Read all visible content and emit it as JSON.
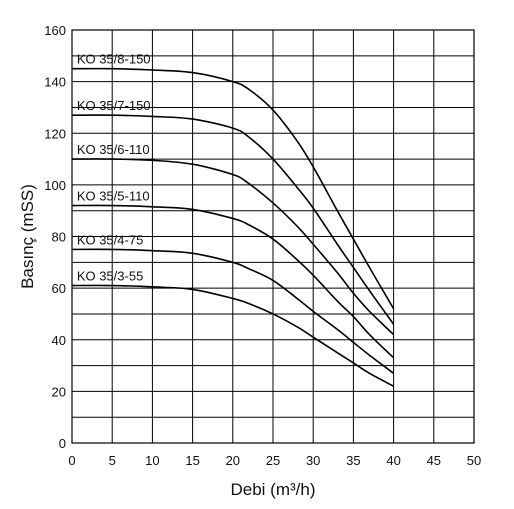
{
  "chart_data": {
    "type": "line",
    "title": "",
    "xlabel": "Debi (m³/h)",
    "ylabel": "Basınç (mSS)",
    "xlim": [
      0,
      50
    ],
    "ylim": [
      0,
      160
    ],
    "x_ticks": [
      0,
      5,
      10,
      15,
      20,
      25,
      30,
      35,
      40,
      45,
      50
    ],
    "y_ticks": [
      0,
      20,
      40,
      60,
      80,
      100,
      120,
      140,
      160
    ],
    "grid": true,
    "series": [
      {
        "name": "KO 35/8-150",
        "x": [
          0,
          5,
          10,
          15,
          20,
          22,
          25,
          28,
          30,
          33,
          35,
          37,
          40
        ],
        "y": [
          145,
          145,
          144.5,
          143.5,
          140,
          137,
          129,
          117,
          107,
          90,
          79,
          68,
          52
        ]
      },
      {
        "name": "KO 35/7-150",
        "x": [
          0,
          5,
          10,
          15,
          20,
          22,
          25,
          28,
          30,
          33,
          35,
          37,
          40
        ],
        "y": [
          127,
          127,
          126.5,
          125.5,
          122,
          118.5,
          110,
          99,
          91,
          77,
          68,
          59,
          46
        ]
      },
      {
        "name": "KO 35/6-110",
        "x": [
          0,
          5,
          10,
          15,
          20,
          22,
          25,
          28,
          30,
          33,
          35,
          37,
          40
        ],
        "y": [
          110,
          110,
          109.5,
          108,
          104,
          100.5,
          93,
          84,
          77,
          66,
          58,
          51,
          42
        ]
      },
      {
        "name": "KO 35/5-110",
        "x": [
          0,
          5,
          10,
          15,
          20,
          22,
          25,
          28,
          30,
          33,
          35,
          37,
          40
        ],
        "y": [
          92,
          92,
          91.5,
          90.5,
          87,
          84.5,
          79,
          71,
          65,
          55,
          49,
          42,
          33
        ]
      },
      {
        "name": "KO 35/4-75",
        "x": [
          0,
          5,
          10,
          15,
          20,
          22,
          25,
          28,
          30,
          33,
          35,
          37,
          40
        ],
        "y": [
          75,
          75,
          74.5,
          73.5,
          70,
          67.5,
          63,
          56,
          51,
          44,
          39,
          34,
          27
        ]
      },
      {
        "name": "KO 35/3-55",
        "x": [
          0,
          5,
          10,
          15,
          20,
          22,
          25,
          28,
          30,
          33,
          35,
          37,
          40
        ],
        "y": [
          61,
          61,
          60.5,
          59.5,
          56,
          54,
          50,
          45,
          41,
          35,
          31,
          27,
          22
        ]
      }
    ]
  }
}
